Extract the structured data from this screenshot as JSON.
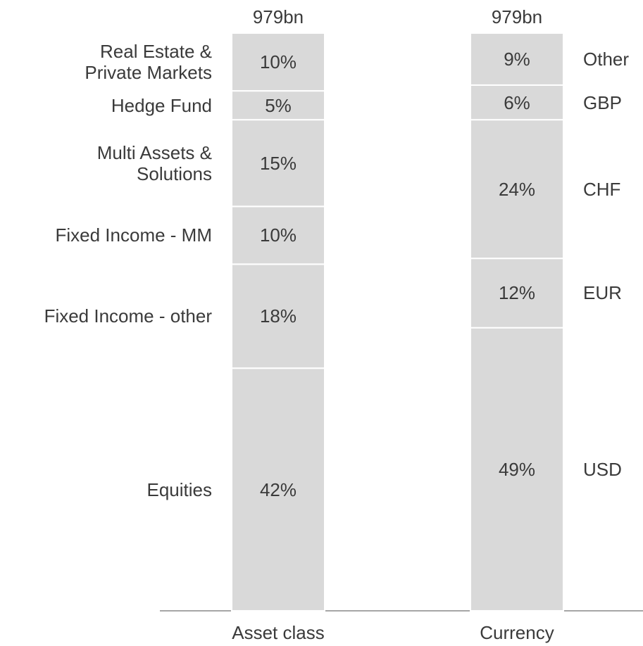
{
  "chart_data": {
    "type": "stacked_bar",
    "ylim": [
      0,
      100
    ],
    "color": "#d9d9d9",
    "bars": [
      {
        "category": "Asset class",
        "total": "979bn",
        "label_side": "left",
        "names": [
          "Equities",
          "Fixed Income - other",
          "Fixed Income - MM",
          "Multi Assets &\nSolutions",
          "Hedge Fund",
          "Real Estate &\nPrivate Markets"
        ],
        "values": [
          42,
          18,
          10,
          15,
          5,
          10
        ],
        "value_labels": [
          "42%",
          "18%",
          "10%",
          "15%",
          "5%",
          "10%"
        ]
      },
      {
        "category": "Currency",
        "total": "979bn",
        "label_side": "right",
        "names": [
          "USD",
          "EUR",
          "CHF",
          "GBP",
          "Other"
        ],
        "values": [
          49,
          12,
          24,
          6,
          9
        ],
        "value_labels": [
          "49%",
          "12%",
          "24%",
          "6%",
          "9%"
        ]
      }
    ]
  }
}
